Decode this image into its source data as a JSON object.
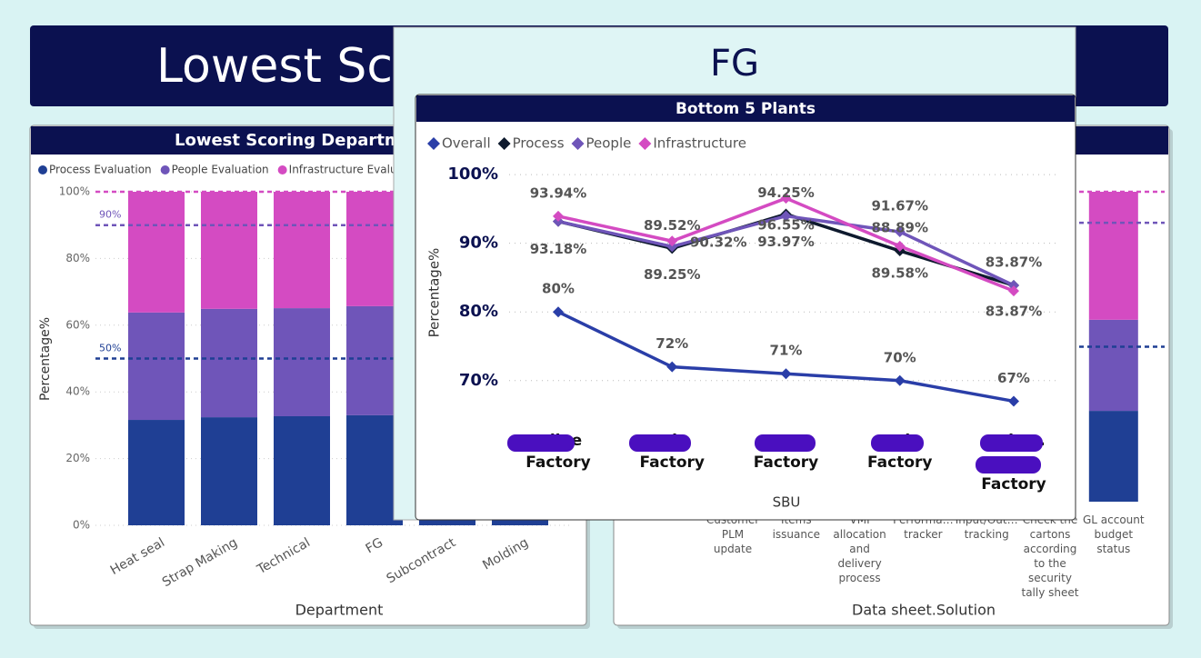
{
  "header": {
    "title": "Lowest Scoring Departments"
  },
  "popup": {
    "title": "FG"
  },
  "chart_data": [
    {
      "type": "stacked_bar",
      "title": "Lowest Scoring Departments",
      "x_label": "Department",
      "y_label": "Percentage%",
      "categories": [
        "Heat seal",
        "Strap Making",
        "Technical",
        "FG",
        "Subcontract",
        "Molding"
      ],
      "series": [
        {
          "name": "Process Evaluation",
          "color": "#1f3f94",
          "values": [
            31.6,
            32.4,
            32.7,
            33,
            33,
            33
          ]
        },
        {
          "name": "People Evaluation",
          "color": "#6f55b9",
          "values": [
            32.2,
            32.5,
            32.4,
            32.7,
            33,
            33
          ]
        },
        {
          "name": "Infrastructure Evaluation",
          "color": "#d44bc2",
          "values": [
            36.2,
            35.1,
            34.9,
            34.3,
            34,
            34
          ]
        }
      ],
      "ylim": [
        0,
        100
      ],
      "yticks": [
        {
          "value": 0,
          "label": "0%"
        },
        {
          "value": 20,
          "label": "20%"
        },
        {
          "value": 40,
          "label": "40%"
        },
        {
          "value": 60,
          "label": "60%"
        },
        {
          "value": 80,
          "label": "80%"
        },
        {
          "value": 100,
          "label": "100%"
        }
      ],
      "grid": true,
      "reference_lines": [
        {
          "value": 100,
          "color": "#d44bc2"
        },
        {
          "value": 90,
          "label": "90%",
          "color": "#6f55b9"
        },
        {
          "value": 50,
          "label": "50%",
          "color": "#1f3f94"
        }
      ]
    },
    {
      "type": "stacked_bar",
      "x_label": "Data sheet.Solution",
      "categories": [
        "Customer PLM update",
        "Items issuance",
        "VMI allocation and delivery process",
        "Performa… tracker",
        "Input/Out… tracking",
        "Check the cartons according to the security tally sheet",
        "GL account budget status"
      ],
      "series": [
        {
          "color": "#1f3f94",
          "values": [
            null,
            null,
            null,
            null,
            null,
            null,
            29.3
          ]
        },
        {
          "color": "#6f55b9",
          "values": [
            null,
            null,
            null,
            null,
            null,
            null,
            29.4
          ]
        },
        {
          "color": "#d44bc2",
          "values": [
            null,
            null,
            null,
            null,
            null,
            null,
            41.3
          ]
        }
      ],
      "ylim": [
        0,
        100
      ],
      "reference_lines": [
        {
          "value": 100,
          "color": "#d44bc2"
        },
        {
          "value": 90,
          "color": "#6f55b9"
        },
        {
          "value": 50,
          "color": "#1f3f94"
        }
      ]
    },
    {
      "type": "line",
      "title": "Bottom 5 Plants",
      "x_label": "SBU",
      "y_label": "Percentage%",
      "legend": "top-left",
      "grid": true,
      "categories": [
        "…line Factory",
        "…ie Factory",
        "…x Factory",
        "…l Factory",
        "…ela …ura Factory"
      ],
      "series": [
        {
          "name": "Overall",
          "color": "#2a3ea8",
          "values": [
            80,
            72,
            71,
            70,
            67
          ],
          "value_labels": [
            "80%",
            "72%",
            "71%",
            "70%",
            "67%"
          ]
        },
        {
          "name": "Process",
          "color": "#0e1a2e",
          "values": [
            93.18,
            89.25,
            94.25,
            88.89,
            83.87
          ],
          "value_labels": [
            null,
            "89.25%",
            "94.25%",
            "88.89%",
            "83.87%"
          ]
        },
        {
          "name": "People",
          "color": "#6f55b9",
          "values": [
            93.18,
            89.52,
            93.97,
            91.67,
            83.87
          ],
          "value_labels": [
            "93.18%",
            "89.52%",
            "93.97%",
            "91.67%",
            "83.87%"
          ]
        },
        {
          "name": "Infrastructure",
          "color": "#d44bc2",
          "values": [
            93.94,
            90.32,
            96.55,
            89.58,
            83.06
          ],
          "value_labels": [
            "93.94%",
            "90.32%",
            "96.55%",
            "89.58%",
            null
          ]
        }
      ],
      "ylim": [
        66,
        102
      ],
      "yticks": [
        {
          "value": 70,
          "label": "70%"
        },
        {
          "value": 80,
          "label": "80%"
        },
        {
          "value": 90,
          "label": "90%"
        },
        {
          "value": 100,
          "label": "100%"
        }
      ]
    }
  ]
}
